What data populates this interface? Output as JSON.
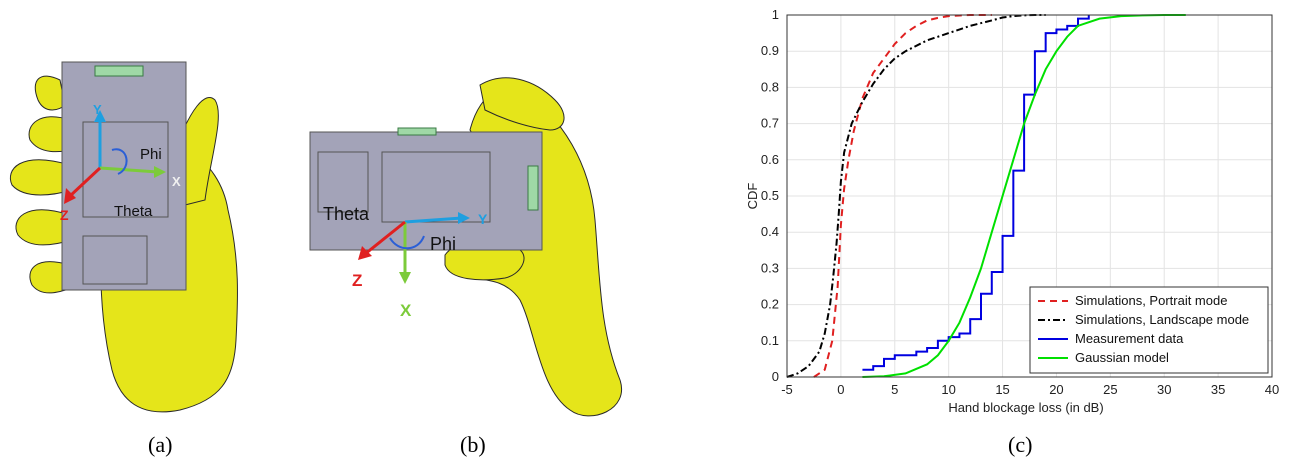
{
  "captions": {
    "a": "(a)",
    "b": "(b)",
    "c": "(c)"
  },
  "panel_a": {
    "axis_labels": {
      "y": "Y",
      "x": "X",
      "z": "Z"
    },
    "angle_labels": {
      "phi": "Phi",
      "theta": "Theta"
    }
  },
  "panel_b": {
    "axis_labels": {
      "y": "Y",
      "x": "X",
      "z": "Z"
    },
    "angle_labels": {
      "phi": "Phi",
      "theta": "Theta"
    }
  },
  "colors": {
    "hand": "#e5e51a",
    "phone": "#a3a3b8",
    "axis_y": "#1e9fe0",
    "axis_x": "#7ccb3a",
    "axis_z": "#e02020"
  },
  "chart_data": {
    "type": "line",
    "xlabel": "Hand blockage loss (in dB)",
    "ylabel": "CDF",
    "xlim": [
      -5,
      40
    ],
    "ylim": [
      0,
      1
    ],
    "xticks": [
      "-5",
      "0",
      "5",
      "10",
      "15",
      "20",
      "25",
      "30",
      "35",
      "40"
    ],
    "yticks": [
      "0",
      "0.1",
      "0.2",
      "0.3",
      "0.4",
      "0.5",
      "0.6",
      "0.7",
      "0.8",
      "0.9",
      "1"
    ],
    "grid": true,
    "legend_position": "bottom-right",
    "series": [
      {
        "name": "Simulations, Portrait mode",
        "color": "#e02020",
        "style": "dashed",
        "x": [
          -2.5,
          -1.5,
          -0.8,
          -0.3,
          0,
          0.3,
          0.7,
          1.2,
          2,
          3,
          4,
          5,
          6,
          7,
          8,
          9,
          10,
          12,
          14
        ],
        "y": [
          0,
          0.02,
          0.1,
          0.25,
          0.42,
          0.52,
          0.6,
          0.68,
          0.77,
          0.84,
          0.88,
          0.92,
          0.95,
          0.97,
          0.985,
          0.992,
          0.997,
          1,
          1
        ]
      },
      {
        "name": "Simulations, Landscape mode",
        "color": "#000000",
        "style": "dashdot",
        "x": [
          -5,
          -4,
          -3,
          -2,
          -1.5,
          -1,
          -0.7,
          -0.4,
          -0.2,
          0,
          0.3,
          1,
          2,
          3,
          4,
          5,
          6,
          8,
          10,
          12,
          14,
          15,
          16,
          17,
          18,
          19
        ],
        "y": [
          0,
          0.01,
          0.03,
          0.07,
          0.12,
          0.2,
          0.28,
          0.37,
          0.45,
          0.54,
          0.62,
          0.7,
          0.76,
          0.81,
          0.85,
          0.88,
          0.9,
          0.93,
          0.95,
          0.97,
          0.985,
          0.993,
          0.997,
          0.999,
          1,
          1
        ]
      },
      {
        "name": "Measurement data",
        "color": "#0000e0",
        "style": "step",
        "x": [
          2,
          3,
          4,
          5,
          7,
          8,
          9,
          10,
          11,
          12,
          13,
          14,
          15,
          16,
          17,
          18,
          19,
          20,
          21,
          22,
          23
        ],
        "y": [
          0.02,
          0.03,
          0.05,
          0.06,
          0.07,
          0.08,
          0.1,
          0.11,
          0.12,
          0.16,
          0.23,
          0.29,
          0.39,
          0.57,
          0.78,
          0.9,
          0.95,
          0.96,
          0.97,
          0.99,
          1.0
        ]
      },
      {
        "name": "Gaussian model",
        "color": "#00e000",
        "style": "solid",
        "x": [
          2,
          4,
          6,
          8,
          9,
          10,
          11,
          12,
          13,
          14,
          15,
          16,
          17,
          18,
          19,
          20,
          21,
          22,
          24,
          26,
          28,
          30,
          32
        ],
        "y": [
          0.0,
          0.002,
          0.01,
          0.035,
          0.06,
          0.1,
          0.15,
          0.22,
          0.3,
          0.4,
          0.5,
          0.6,
          0.7,
          0.78,
          0.85,
          0.9,
          0.94,
          0.97,
          0.99,
          0.997,
          0.999,
          1.0,
          1.0
        ]
      }
    ]
  }
}
